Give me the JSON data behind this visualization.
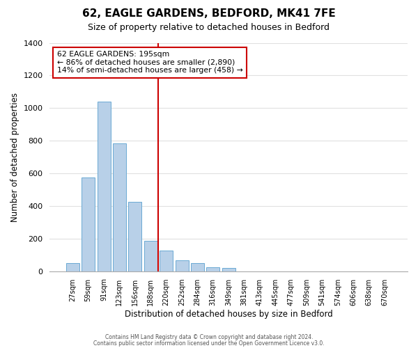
{
  "title1": "62, EAGLE GARDENS, BEDFORD, MK41 7FE",
  "title2": "Size of property relative to detached houses in Bedford",
  "xlabel": "Distribution of detached houses by size in Bedford",
  "ylabel": "Number of detached properties",
  "bin_labels": [
    "27sqm",
    "59sqm",
    "91sqm",
    "123sqm",
    "156sqm",
    "188sqm",
    "220sqm",
    "252sqm",
    "284sqm",
    "316sqm",
    "349sqm",
    "381sqm",
    "413sqm",
    "445sqm",
    "477sqm",
    "509sqm",
    "541sqm",
    "574sqm",
    "606sqm",
    "638sqm",
    "670sqm"
  ],
  "bar_values": [
    50,
    575,
    1040,
    785,
    425,
    185,
    125,
    65,
    50,
    25,
    20,
    0,
    0,
    0,
    0,
    0,
    0,
    0,
    0,
    0,
    0
  ],
  "bar_color": "#b8d0e8",
  "bar_edge_color": "#6aaad4",
  "vline_color": "#cc0000",
  "vline_pos": 5.5,
  "ylim": [
    0,
    1400
  ],
  "yticks": [
    0,
    200,
    400,
    600,
    800,
    1000,
    1200,
    1400
  ],
  "annotation_title": "62 EAGLE GARDENS: 195sqm",
  "annotation_line1": "← 86% of detached houses are smaller (2,890)",
  "annotation_line2": "14% of semi-detached houses are larger (458) →",
  "annotation_box_color": "#ffffff",
  "annotation_box_edge": "#cc0000",
  "footer1": "Contains HM Land Registry data © Crown copyright and database right 2024.",
  "footer2": "Contains public sector information licensed under the Open Government Licence v3.0.",
  "background_color": "#ffffff",
  "grid_color": "#e0e0e0"
}
